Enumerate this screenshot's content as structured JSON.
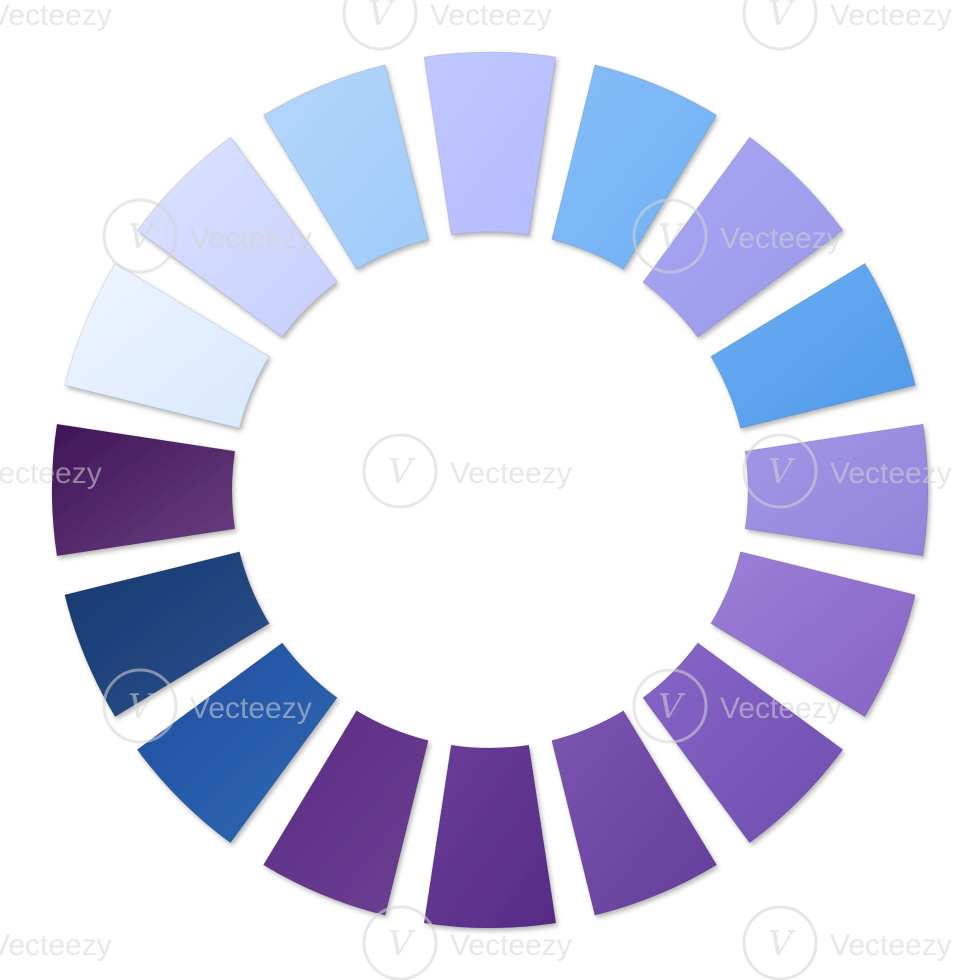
{
  "wheel": {
    "segments": [
      {
        "color_a": "#c2c7ff",
        "color_b": "#b4bbfd"
      },
      {
        "color_a": "#86bdf8",
        "color_b": "#6fb0f5"
      },
      {
        "color_a": "#a9a8f3",
        "color_b": "#9b97ea"
      },
      {
        "color_a": "#6cadf4",
        "color_b": "#4f9ae8"
      },
      {
        "color_a": "#a197e6",
        "color_b": "#9283da"
      },
      {
        "color_a": "#9b7fd8",
        "color_b": "#8763c4"
      },
      {
        "color_a": "#8766c8",
        "color_b": "#6f4db0"
      },
      {
        "color_a": "#7a55b0",
        "color_b": "#643e9a"
      },
      {
        "color_a": "#6a3e98",
        "color_b": "#552b85"
      },
      {
        "color_a": "#5b2c84",
        "color_b": "#6c3f92"
      },
      {
        "color_a": "#1f4ea0",
        "color_b": "#3068b3"
      },
      {
        "color_a": "#16396f",
        "color_b": "#2c4f8c"
      },
      {
        "color_a": "#3f1556",
        "color_b": "#6a3f82"
      },
      {
        "color_a": "#eef5ff",
        "color_b": "#d9e8fd"
      },
      {
        "color_a": "#dde2ff",
        "color_b": "#c6cffc"
      },
      {
        "color_a": "#b5d7fb",
        "color_b": "#9ecafa"
      }
    ]
  },
  "watermark": {
    "text": "Vecteezy",
    "color": "#d4d4d4"
  }
}
